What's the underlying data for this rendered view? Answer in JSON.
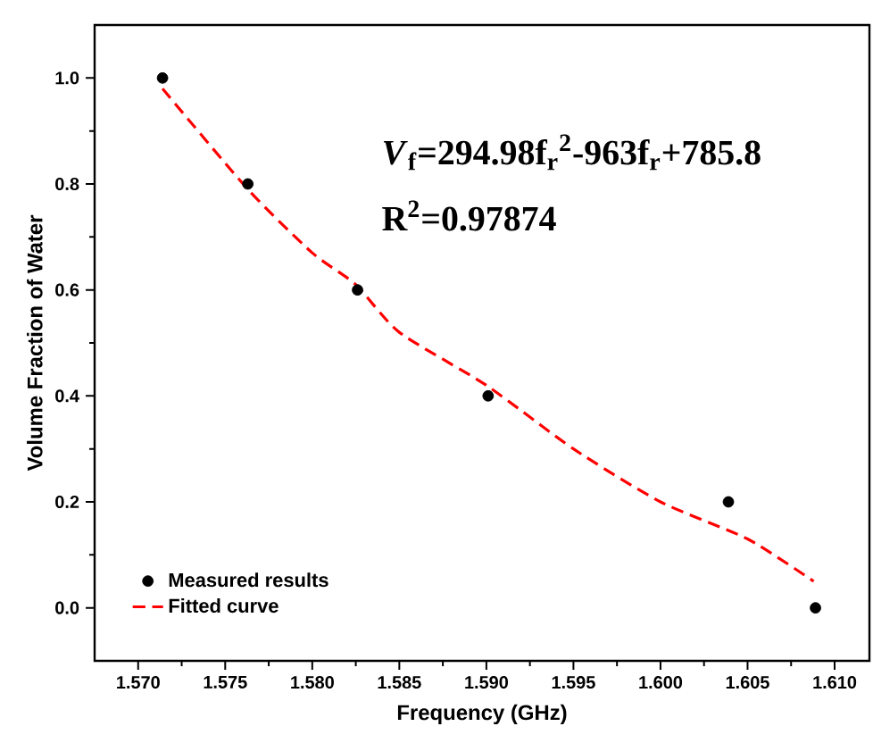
{
  "chart_data": {
    "type": "scatter",
    "xlabel": "Frequency (GHz)",
    "ylabel": "Volume Fraction of Water",
    "xlim": [
      1.5675,
      1.612
    ],
    "ylim": [
      -0.1,
      1.1
    ],
    "xticks": [
      {
        "value": 1.57,
        "label": "1.570"
      },
      {
        "value": 1.575,
        "label": "1.575"
      },
      {
        "value": 1.58,
        "label": "1.580"
      },
      {
        "value": 1.585,
        "label": "1.585"
      },
      {
        "value": 1.59,
        "label": "1.590"
      },
      {
        "value": 1.595,
        "label": "1.595"
      },
      {
        "value": 1.6,
        "label": "1.600"
      },
      {
        "value": 1.605,
        "label": "1.605"
      },
      {
        "value": 1.61,
        "label": "1.610"
      }
    ],
    "yticks": [
      {
        "value": 0,
        "label": "0.0"
      },
      {
        "value": 0.2,
        "label": "0.2"
      },
      {
        "value": 0.4,
        "label": "0.4"
      },
      {
        "value": 0.6,
        "label": "0.6"
      },
      {
        "value": 0.8,
        "label": "0.8"
      },
      {
        "value": 1,
        "label": "1.0"
      }
    ],
    "legend": "bottom left",
    "annotations": [
      "*V*$_{f}$=294.98f$_{r}$$^{2}$-963f$_{r}$+785.8",
      "R$^{2}$=0.97874"
    ],
    "series": [
      {
        "name": "Measured results",
        "color": "#000000",
        "marker": "circle",
        "x": [
          1.5714,
          1.5763,
          1.5826,
          1.5901,
          1.6039,
          1.6089
        ],
        "values": [
          1.0,
          0.8,
          0.6,
          0.4,
          0.2,
          0.0
        ]
      },
      {
        "name": "Fitted curve",
        "type": "line",
        "color": "#ff0000",
        "line_style": "dashed",
        "marker": "none",
        "x": [
          1.5714,
          1.5763,
          1.58,
          1.5825,
          1.585,
          1.59,
          1.595,
          1.6,
          1.605,
          1.6088
        ],
        "values": [
          0.98,
          0.79,
          0.67,
          0.61,
          0.52,
          0.42,
          0.3,
          0.2,
          0.13,
          0.05
        ]
      }
    ]
  }
}
